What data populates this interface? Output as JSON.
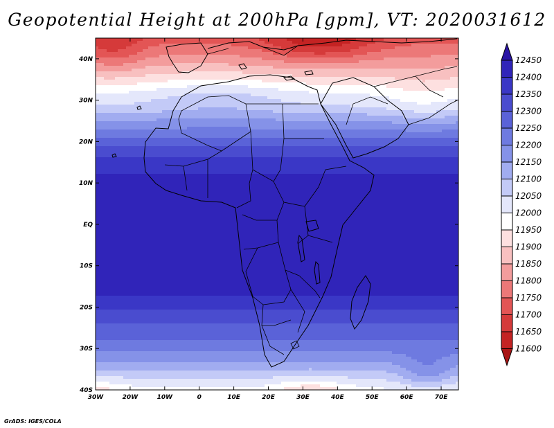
{
  "title": "Geopotential Height at 200hPa [gpm], VT: 2020031612",
  "credit": "GrADS: IGES/COLA",
  "map": {
    "lon_range": [
      -30,
      75
    ],
    "lat_range": [
      -40,
      45
    ],
    "lon_ticks": [
      {
        "lon": -30,
        "label": "30W"
      },
      {
        "lon": -20,
        "label": "20W"
      },
      {
        "lon": -10,
        "label": "10W"
      },
      {
        "lon": 0,
        "label": "0"
      },
      {
        "lon": 10,
        "label": "10E"
      },
      {
        "lon": 20,
        "label": "20E"
      },
      {
        "lon": 30,
        "label": "30E"
      },
      {
        "lon": 40,
        "label": "40E"
      },
      {
        "lon": 50,
        "label": "50E"
      },
      {
        "lon": 60,
        "label": "60E"
      },
      {
        "lon": 70,
        "label": "70E"
      }
    ],
    "lat_ticks": [
      {
        "lat": 40,
        "label": "40N"
      },
      {
        "lat": 30,
        "label": "30N"
      },
      {
        "lat": 20,
        "label": "20N"
      },
      {
        "lat": 10,
        "label": "10N"
      },
      {
        "lat": 0,
        "label": "EQ"
      },
      {
        "lat": -10,
        "label": "10S"
      },
      {
        "lat": -20,
        "label": "20S"
      },
      {
        "lat": -30,
        "label": "30S"
      },
      {
        "lat": -40,
        "label": "40S"
      }
    ],
    "height_profile_gpm": [
      {
        "lat": 45,
        "value": 11730
      },
      {
        "lat": 40,
        "value": 11820
      },
      {
        "lat": 35,
        "value": 11920
      },
      {
        "lat": 32,
        "value": 11990
      },
      {
        "lat": 28,
        "value": 12060
      },
      {
        "lat": 25,
        "value": 12150
      },
      {
        "lat": 20,
        "value": 12280
      },
      {
        "lat": 15,
        "value": 12380
      },
      {
        "lat": 10,
        "value": 12420
      },
      {
        "lat": 0,
        "value": 12425
      },
      {
        "lat": -10,
        "value": 12420
      },
      {
        "lat": -17,
        "value": 12400
      },
      {
        "lat": -22,
        "value": 12330
      },
      {
        "lat": -27,
        "value": 12260
      },
      {
        "lat": -32,
        "value": 12180
      },
      {
        "lat": -36,
        "value": 12080
      },
      {
        "lat": -40,
        "value": 11990
      }
    ]
  },
  "colorbar": {
    "levels": [
      "12450",
      "12400",
      "12350",
      "12300",
      "12250",
      "12200",
      "12150",
      "12100",
      "12050",
      "12000",
      "11950",
      "11900",
      "11850",
      "11800",
      "11750",
      "11700",
      "11650",
      "11600"
    ],
    "colors": [
      "#2a14a5",
      "#3024b9",
      "#3a37c6",
      "#4a4ccf",
      "#5a62d8",
      "#6e7ae0",
      "#8592e8",
      "#a1acf0",
      "#c3caf7",
      "#e4e7fb",
      "#ffffff",
      "#fde0e0",
      "#f8c0c0",
      "#f39c9c",
      "#ec7878",
      "#e35555",
      "#d53a3a",
      "#c42323",
      "#a81515"
    ]
  }
}
